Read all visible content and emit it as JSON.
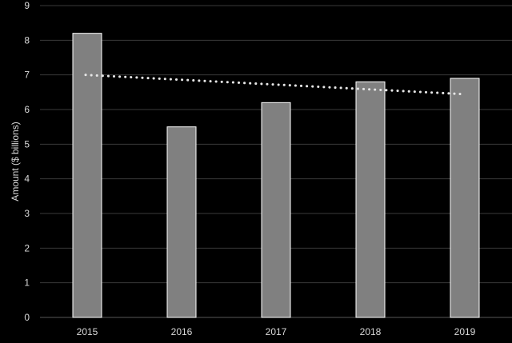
{
  "chart_data": {
    "type": "bar",
    "title": "",
    "xlabel": "",
    "ylabel": "Amount ($ billions)",
    "categories": [
      "2015",
      "2016",
      "2017",
      "2018",
      "2019"
    ],
    "values": [
      8.2,
      5.5,
      6.2,
      6.8,
      6.9
    ],
    "ylim": [
      0,
      9
    ],
    "yticks": [
      0,
      1,
      2,
      3,
      4,
      5,
      6,
      7,
      8,
      9
    ],
    "grid": true,
    "trendline": {
      "type": "linear",
      "style": "dotted",
      "start": 7.0,
      "end": 6.45
    },
    "colors": {
      "background": "#000000",
      "bar_fill": "#808080",
      "bar_edge": "#ffffff",
      "grid": "#3a3a3a",
      "text": "#d9d9d9",
      "trend": "#e6e6e6"
    }
  }
}
